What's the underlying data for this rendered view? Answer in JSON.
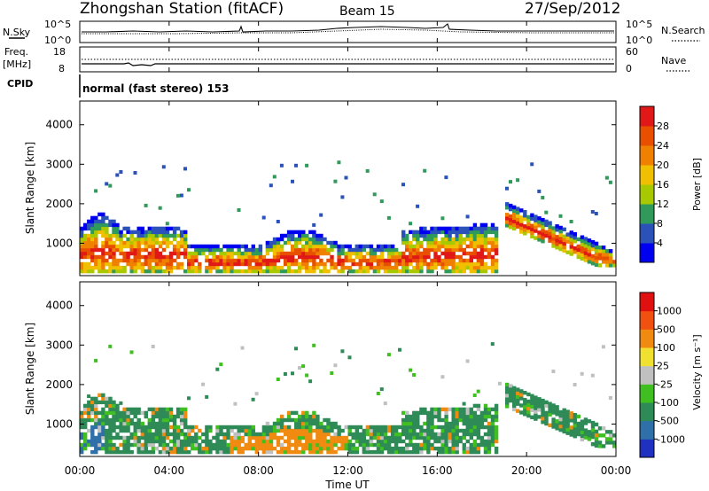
{
  "header": {
    "station": "Zhongshan Station (fitACF)",
    "beam": "Beam 15",
    "date": "27/Sep/2012"
  },
  "chart_data": [
    {
      "type": "line",
      "name": "noise-panel",
      "left_label": "N.Sky",
      "right_label": "N.Search",
      "left_ticks": [
        "10^5",
        "10^0"
      ],
      "right_ticks": [
        "10^5",
        "10^0"
      ]
    },
    {
      "type": "line",
      "name": "frequency-panel",
      "left_label": "Freq.",
      "left_unit": "[MHz]",
      "right_label": "Nave",
      "left_ticks": [
        "18",
        "8"
      ],
      "right_ticks": [
        "60",
        "0"
      ]
    },
    {
      "type": "table",
      "name": "cpid-panel",
      "label": "CPID",
      "text": "normal (fast stereo) 153"
    },
    {
      "type": "heatmap",
      "name": "power-panel",
      "ylabel": "Slant Range [km]",
      "yticks": [
        1000,
        2000,
        3000,
        4000
      ],
      "ylim": [
        180,
        4600
      ],
      "colorbar_label": "Power [dB]",
      "colorbar_ticks": [
        "28",
        "24",
        "20",
        "16",
        "12",
        "8",
        "4"
      ],
      "colors": [
        "#0000f0",
        "#2a52b8",
        "#2f9a5a",
        "#a8c800",
        "#f0c000",
        "#f08000",
        "#e85000",
        "#e01818"
      ]
    },
    {
      "type": "heatmap",
      "name": "velocity-panel",
      "ylabel": "Slant Range [km]",
      "yticks": [
        1000,
        2000,
        3000,
        4000
      ],
      "ylim": [
        180,
        4600
      ],
      "colorbar_label": "Velocity [m s⁻¹]",
      "colorbar_ticks": [
        "1000",
        "500",
        "100",
        "25",
        "-25",
        "-100",
        "-500",
        "-1000"
      ],
      "colors": [
        "#2030c0",
        "#3070a8",
        "#2e8b57",
        "#40c020",
        "#c0c0c0",
        "#f0e030",
        "#f08a10",
        "#f05010",
        "#e01010"
      ]
    }
  ],
  "xaxis": {
    "label": "Time UT",
    "ticks": [
      "00:00",
      "04:00",
      "08:00",
      "12:00",
      "16:00",
      "20:00",
      "00:00"
    ]
  }
}
